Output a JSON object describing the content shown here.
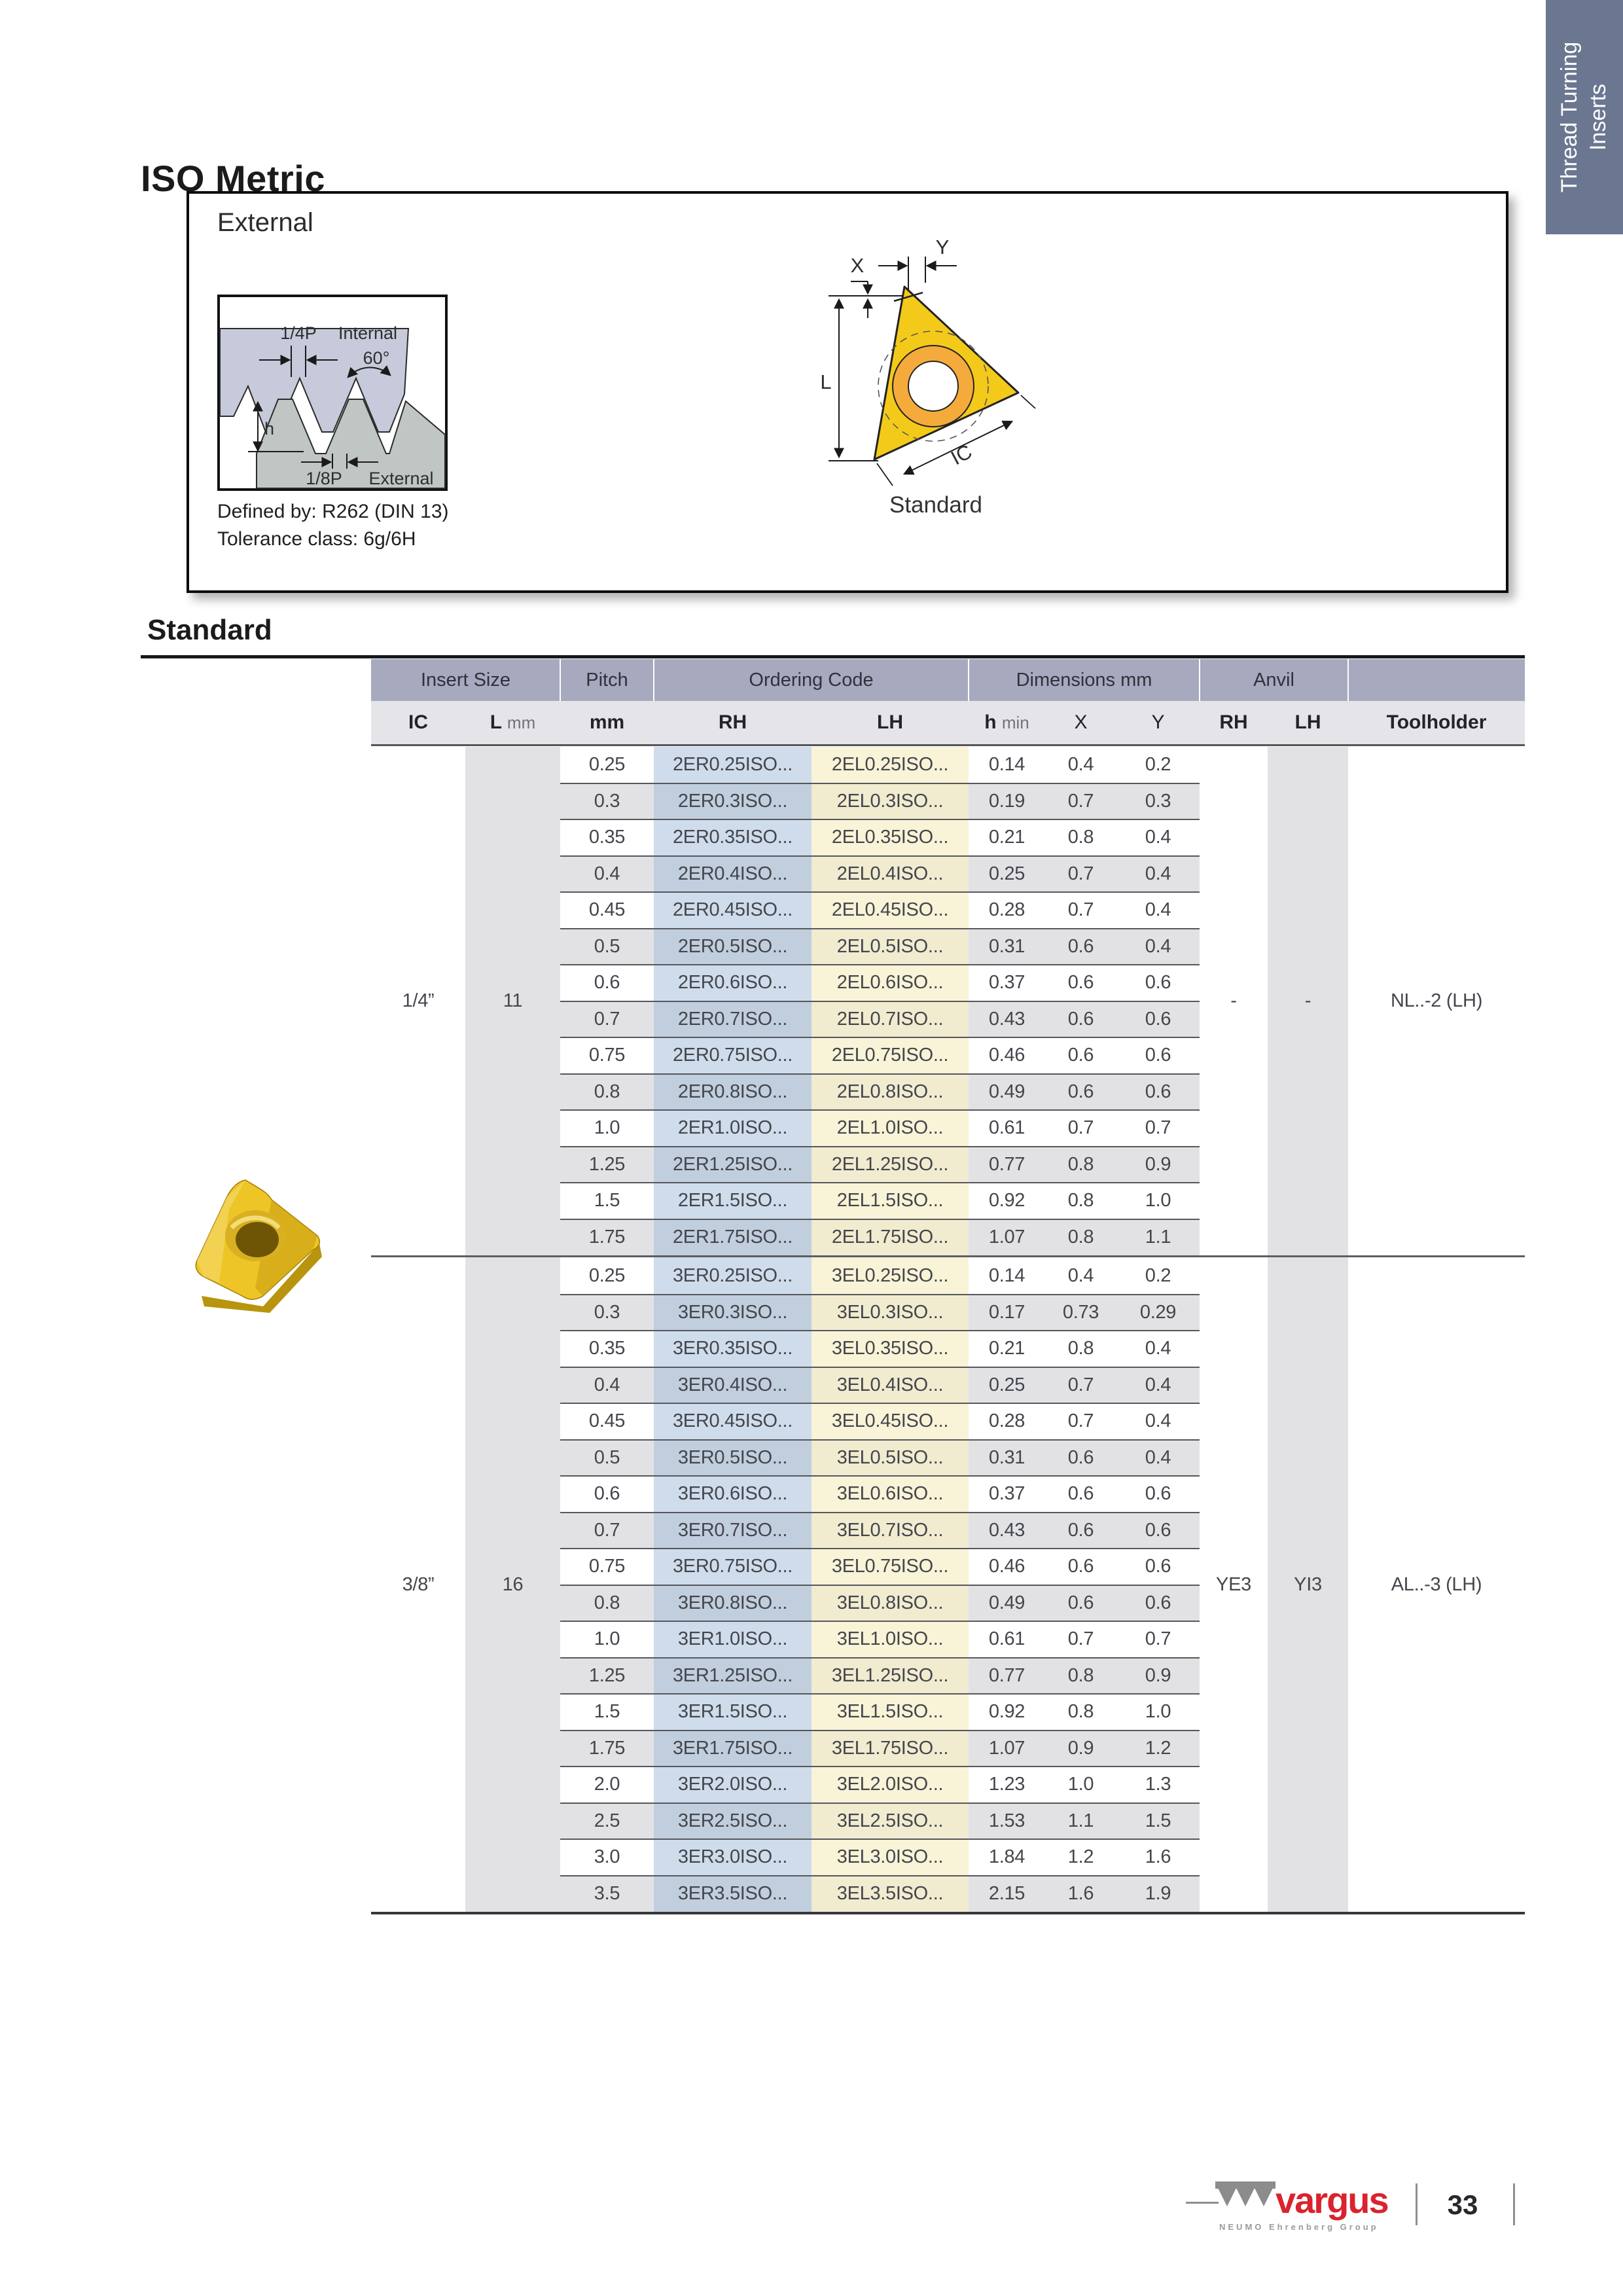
{
  "page_title": "ISO Metric",
  "side_tab": {
    "line1": "Thread Turning",
    "line2": "Inserts"
  },
  "external_box": {
    "label": "External",
    "defined_by": "Defined by: R262 (DIN 13)",
    "tolerance": "Tolerance class: 6g/6H",
    "profile": {
      "pitch_top": "1/4P",
      "internal": "Internal",
      "angle": "60°",
      "height": "h",
      "pitch_bottom": "1/8P",
      "external": "External"
    },
    "dims": {
      "x": "X",
      "y": "Y",
      "l": "L",
      "ic": "IC",
      "caption": "Standard"
    }
  },
  "section_title": "Standard",
  "table": {
    "header1": {
      "insert_size": "Insert Size",
      "pitch": "Pitch",
      "ordering_code": "Ordering Code",
      "dimensions": "Dimensions mm",
      "anvil": "Anvil"
    },
    "header2": {
      "ic": "IC",
      "l": "L",
      "l_unit": "mm",
      "pitch_unit": "mm",
      "rh": "RH",
      "lh": "LH",
      "h": "h",
      "h_unit": "min",
      "x": "X",
      "y": "Y",
      "anvil_rh": "RH",
      "anvil_lh": "LH",
      "toolholder": "Toolholder"
    },
    "groups": [
      {
        "ic": "1/4”",
        "l_mm": "11",
        "anvil_rh": "-",
        "anvil_lh": "-",
        "toolholder": "NL..-2 (LH)",
        "rows": [
          [
            "0.25",
            "2ER0.25ISO...",
            "2EL0.25ISO...",
            "0.14",
            "0.4",
            "0.2"
          ],
          [
            "0.3",
            "2ER0.3ISO...",
            "2EL0.3ISO...",
            "0.19",
            "0.7",
            "0.3"
          ],
          [
            "0.35",
            "2ER0.35ISO...",
            "2EL0.35ISO...",
            "0.21",
            "0.8",
            "0.4"
          ],
          [
            "0.4",
            "2ER0.4ISO...",
            "2EL0.4ISO...",
            "0.25",
            "0.7",
            "0.4"
          ],
          [
            "0.45",
            "2ER0.45ISO...",
            "2EL0.45ISO...",
            "0.28",
            "0.7",
            "0.4"
          ],
          [
            "0.5",
            "2ER0.5ISO...",
            "2EL0.5ISO...",
            "0.31",
            "0.6",
            "0.4"
          ],
          [
            "0.6",
            "2ER0.6ISO...",
            "2EL0.6ISO...",
            "0.37",
            "0.6",
            "0.6"
          ],
          [
            "0.7",
            "2ER0.7ISO...",
            "2EL0.7ISO...",
            "0.43",
            "0.6",
            "0.6"
          ],
          [
            "0.75",
            "2ER0.75ISO...",
            "2EL0.75ISO...",
            "0.46",
            "0.6",
            "0.6"
          ],
          [
            "0.8",
            "2ER0.8ISO...",
            "2EL0.8ISO...",
            "0.49",
            "0.6",
            "0.6"
          ],
          [
            "1.0",
            "2ER1.0ISO...",
            "2EL1.0ISO...",
            "0.61",
            "0.7",
            "0.7"
          ],
          [
            "1.25",
            "2ER1.25ISO...",
            "2EL1.25ISO...",
            "0.77",
            "0.8",
            "0.9"
          ],
          [
            "1.5",
            "2ER1.5ISO...",
            "2EL1.5ISO...",
            "0.92",
            "0.8",
            "1.0"
          ],
          [
            "1.75",
            "2ER1.75ISO...",
            "2EL1.75ISO...",
            "1.07",
            "0.8",
            "1.1"
          ]
        ]
      },
      {
        "ic": "3/8”",
        "l_mm": "16",
        "anvil_rh": "YE3",
        "anvil_lh": "YI3",
        "toolholder": "AL..-3 (LH)",
        "rows": [
          [
            "0.25",
            "3ER0.25ISO...",
            "3EL0.25ISO...",
            "0.14",
            "0.4",
            "0.2"
          ],
          [
            "0.3",
            "3ER0.3ISO...",
            "3EL0.3ISO...",
            "0.17",
            "0.73",
            "0.29"
          ],
          [
            "0.35",
            "3ER0.35ISO...",
            "3EL0.35ISO...",
            "0.21",
            "0.8",
            "0.4"
          ],
          [
            "0.4",
            "3ER0.4ISO...",
            "3EL0.4ISO...",
            "0.25",
            "0.7",
            "0.4"
          ],
          [
            "0.45",
            "3ER0.45ISO...",
            "3EL0.45ISO...",
            "0.28",
            "0.7",
            "0.4"
          ],
          [
            "0.5",
            "3ER0.5ISO...",
            "3EL0.5ISO...",
            "0.31",
            "0.6",
            "0.4"
          ],
          [
            "0.6",
            "3ER0.6ISO...",
            "3EL0.6ISO...",
            "0.37",
            "0.6",
            "0.6"
          ],
          [
            "0.7",
            "3ER0.7ISO...",
            "3EL0.7ISO...",
            "0.43",
            "0.6",
            "0.6"
          ],
          [
            "0.75",
            "3ER0.75ISO...",
            "3EL0.75ISO...",
            "0.46",
            "0.6",
            "0.6"
          ],
          [
            "0.8",
            "3ER0.8ISO...",
            "3EL0.8ISO...",
            "0.49",
            "0.6",
            "0.6"
          ],
          [
            "1.0",
            "3ER1.0ISO...",
            "3EL1.0ISO...",
            "0.61",
            "0.7",
            "0.7"
          ],
          [
            "1.25",
            "3ER1.25ISO...",
            "3EL1.25ISO...",
            "0.77",
            "0.8",
            "0.9"
          ],
          [
            "1.5",
            "3ER1.5ISO...",
            "3EL1.5ISO...",
            "0.92",
            "0.8",
            "1.0"
          ],
          [
            "1.75",
            "3ER1.75ISO...",
            "3EL1.75ISO...",
            "1.07",
            "0.9",
            "1.2"
          ],
          [
            "2.0",
            "3ER2.0ISO...",
            "3EL2.0ISO...",
            "1.23",
            "1.0",
            "1.3"
          ],
          [
            "2.5",
            "3ER2.5ISO...",
            "3EL2.5ISO...",
            "1.53",
            "1.1",
            "1.5"
          ],
          [
            "3.0",
            "3ER3.0ISO...",
            "3EL3.0ISO...",
            "1.84",
            "1.2",
            "1.6"
          ],
          [
            "3.5",
            "3ER3.5ISO...",
            "3EL3.5ISO...",
            "2.15",
            "1.6",
            "1.9"
          ]
        ]
      }
    ]
  },
  "footer": {
    "brand": "vargus",
    "brand_sub": "NEUMO Ehrenberg Group",
    "page_number": "33"
  },
  "colors": {
    "accent_red": "#d9232e",
    "tab_bg": "#6b7690",
    "header_purple": "#a7a9be",
    "row_gray": "#e2e2e5",
    "code_rh_bg": "#cdd9eb",
    "code_lh_bg": "#f7f4dd",
    "insert_yellow": "#f0c419"
  }
}
